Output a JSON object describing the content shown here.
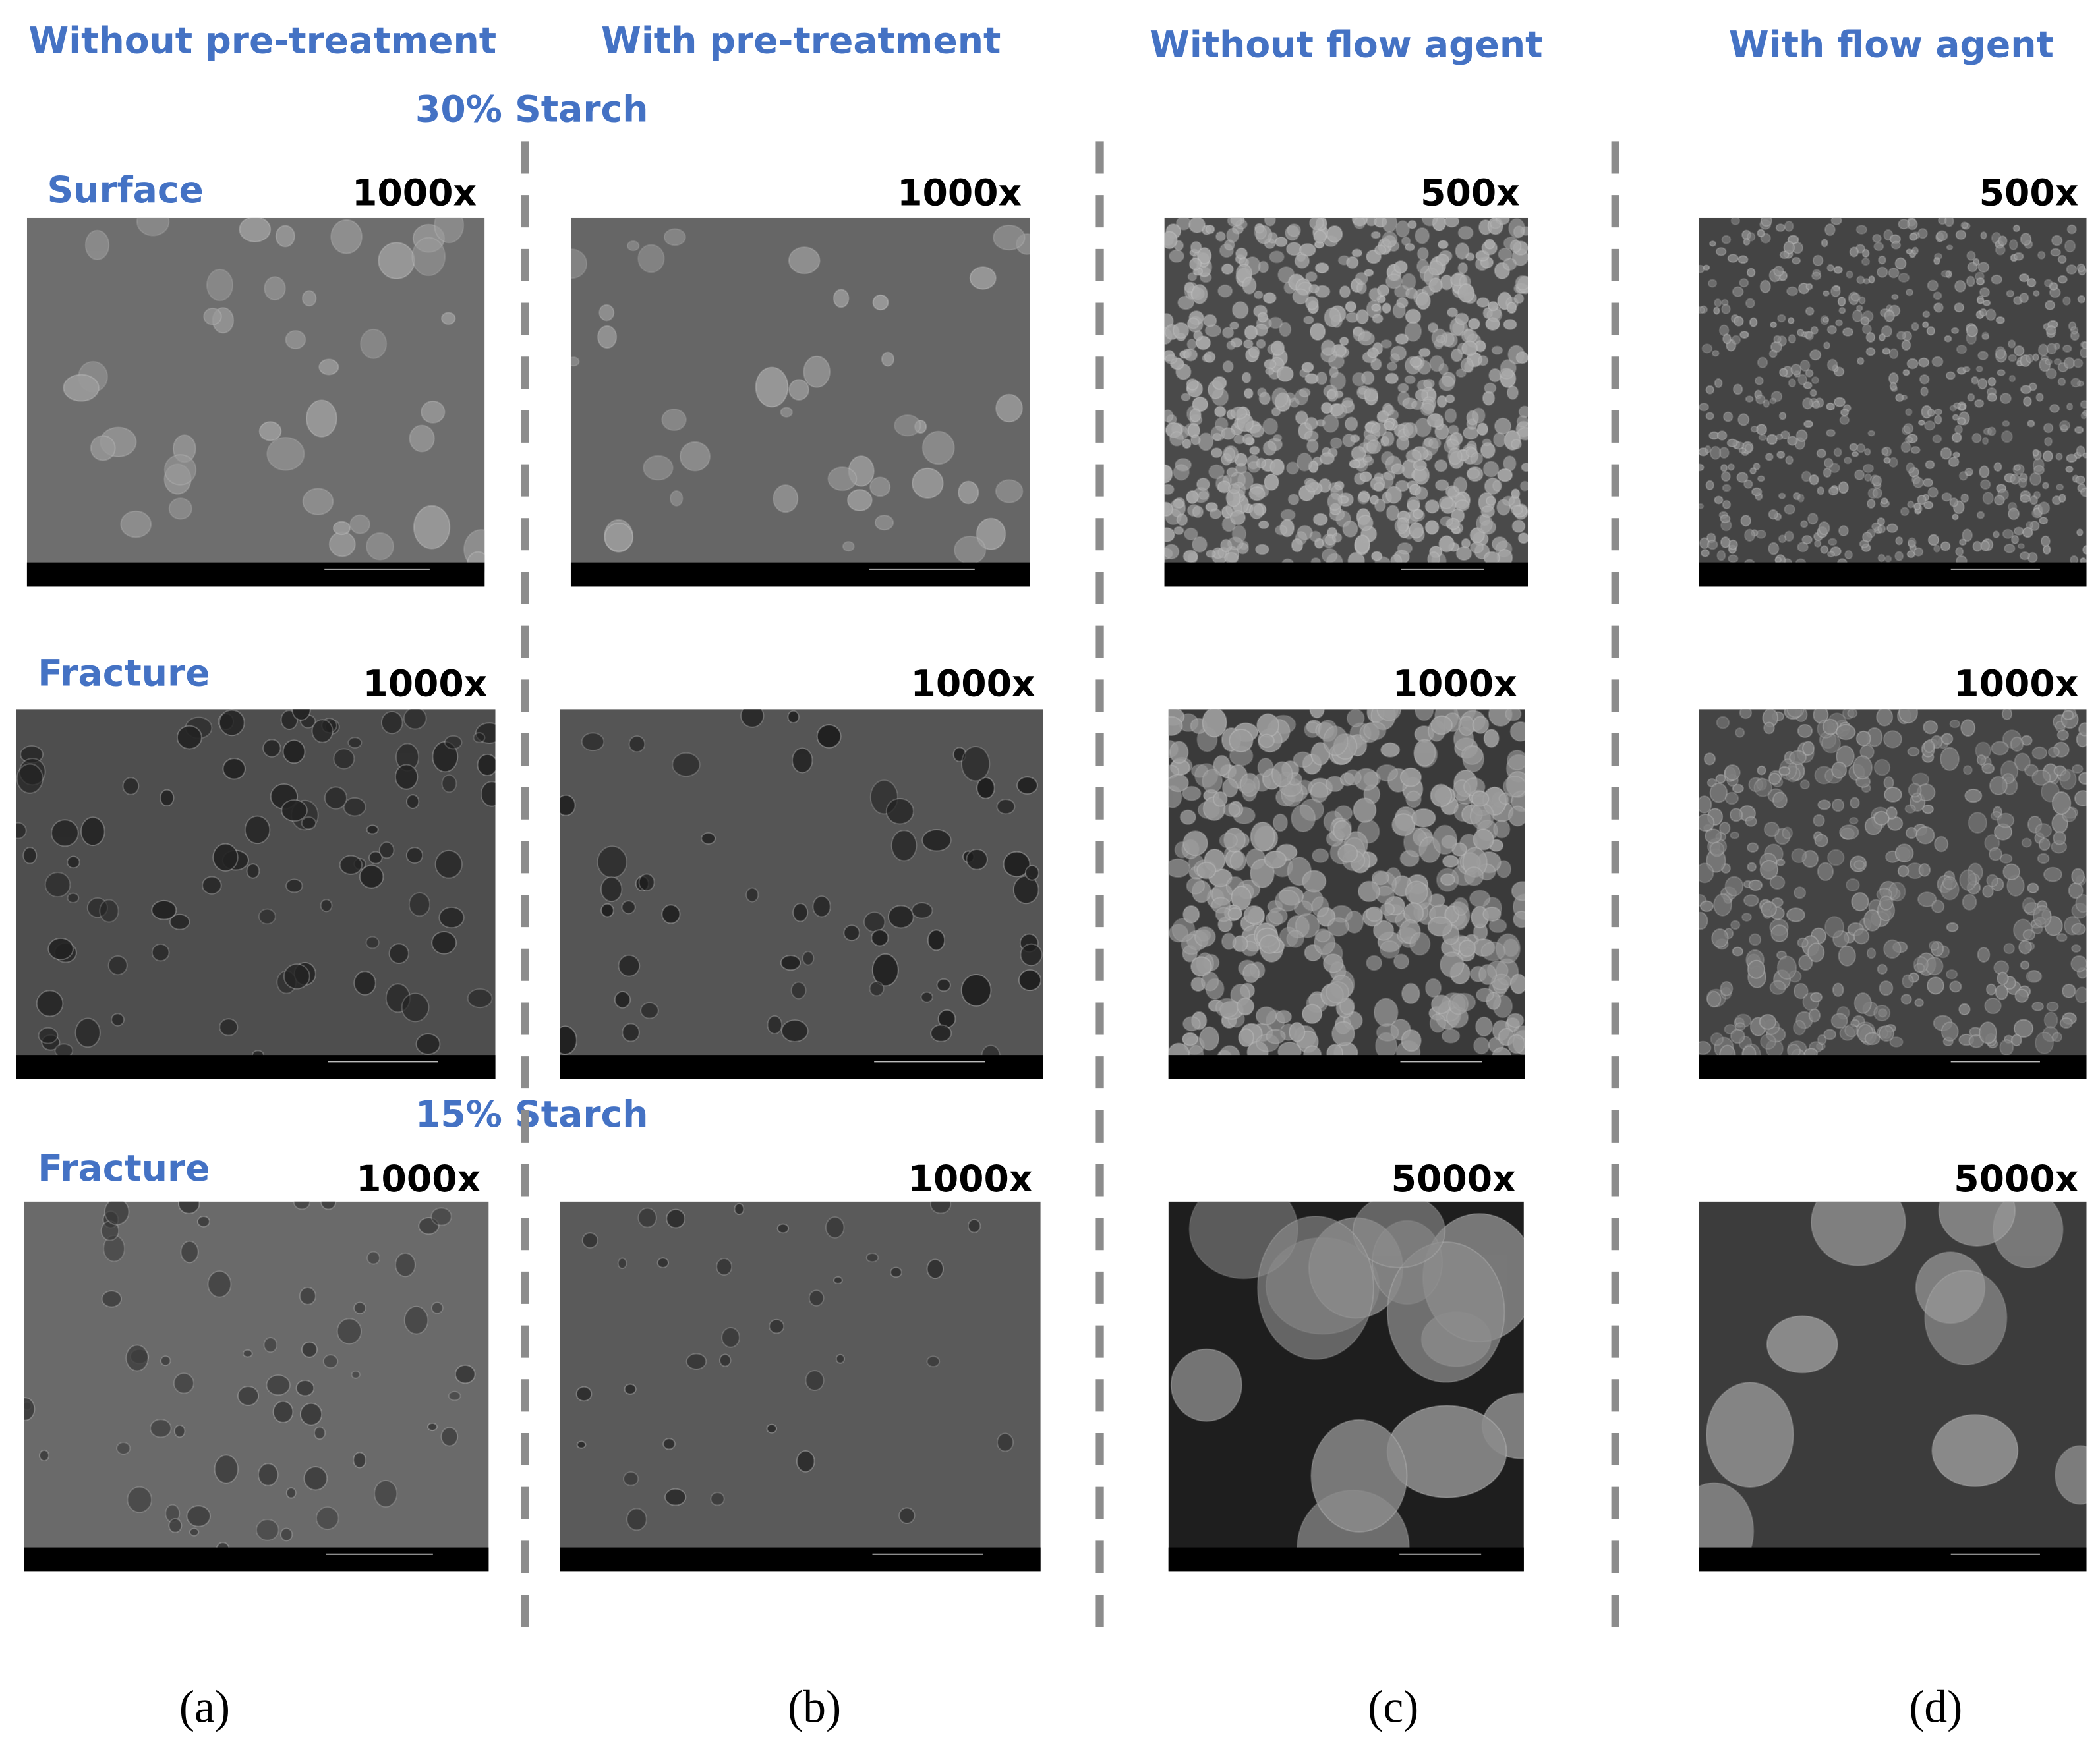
{
  "columns": [
    {
      "title": "Without pre-treatment",
      "label": "(a)"
    },
    {
      "title": "With pre-treatment",
      "label": "(b)"
    },
    {
      "title": "Without flow agent",
      "label": "(c)"
    },
    {
      "title": "With flow agent",
      "label": "(d)"
    }
  ],
  "sections": [
    "30% Starch",
    "15% Starch"
  ],
  "row_labels": [
    "Surface",
    "Fracture",
    "Fracture"
  ],
  "magnifications": [
    [
      "1000x",
      "1000x",
      "500x",
      "500x"
    ],
    [
      "1000x",
      "1000x",
      "1000x",
      "1000x"
    ],
    [
      "1000x",
      "1000x",
      "5000x",
      "5000x"
    ]
  ]
}
